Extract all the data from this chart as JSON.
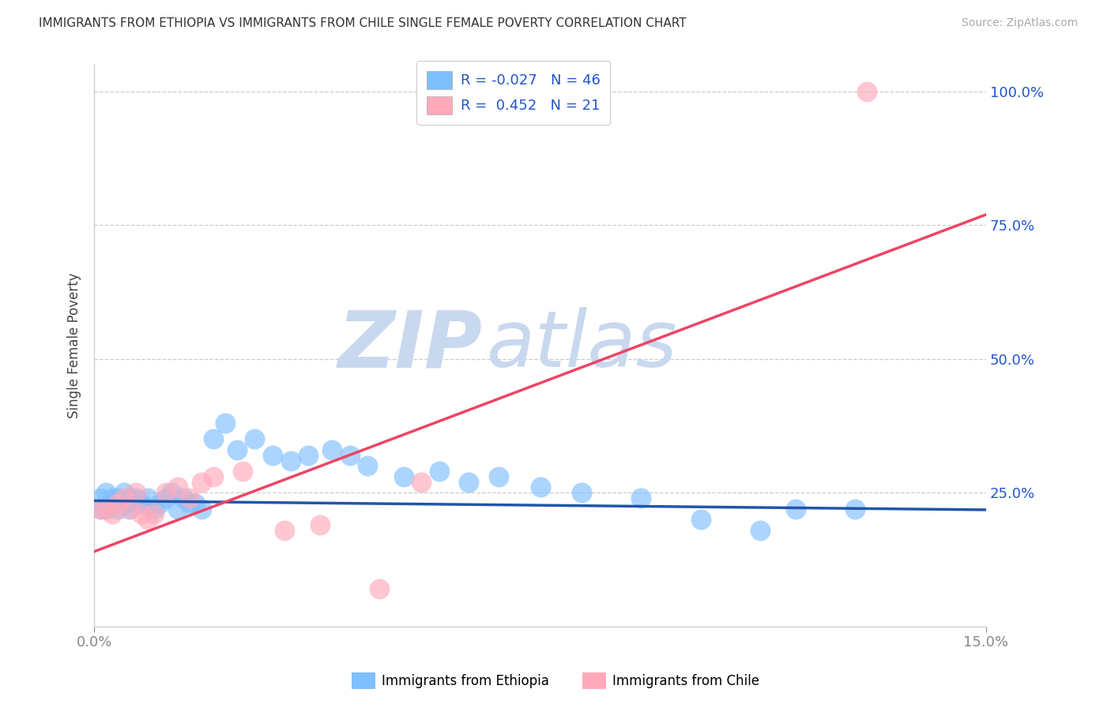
{
  "title": "IMMIGRANTS FROM ETHIOPIA VS IMMIGRANTS FROM CHILE SINGLE FEMALE POVERTY CORRELATION CHART",
  "source": "Source: ZipAtlas.com",
  "ylabel": "Single Female Poverty",
  "color_ethiopia": "#7fbfff",
  "color_chile": "#ffaabb",
  "color_trendline_ethiopia": "#2255aa",
  "color_trendline_chile": "#ee4466",
  "watermark_zip": "ZIP",
  "watermark_atlas": "atlas",
  "watermark_color": "#c8d8ee",
  "xlim": [
    0.0,
    0.15
  ],
  "ylim": [
    0.0,
    1.05
  ],
  "ethiopia_trendline": [
    0.235,
    0.218
  ],
  "chile_trendline": [
    0.14,
    0.77
  ],
  "ethiopia_x": [
    0.001,
    0.001,
    0.002,
    0.002,
    0.003,
    0.003,
    0.004,
    0.004,
    0.005,
    0.005,
    0.006,
    0.006,
    0.007,
    0.007,
    0.008,
    0.009,
    0.01,
    0.011,
    0.012,
    0.013,
    0.014,
    0.015,
    0.016,
    0.017,
    0.018,
    0.02,
    0.022,
    0.024,
    0.027,
    0.03,
    0.033,
    0.036,
    0.04,
    0.043,
    0.046,
    0.052,
    0.058,
    0.063,
    0.068,
    0.075,
    0.082,
    0.092,
    0.102,
    0.112,
    0.118,
    0.128
  ],
  "ethiopia_y": [
    0.24,
    0.22,
    0.25,
    0.22,
    0.23,
    0.24,
    0.24,
    0.22,
    0.25,
    0.23,
    0.24,
    0.22,
    0.23,
    0.24,
    0.23,
    0.24,
    0.22,
    0.23,
    0.24,
    0.25,
    0.22,
    0.24,
    0.23,
    0.23,
    0.22,
    0.35,
    0.38,
    0.33,
    0.35,
    0.32,
    0.31,
    0.32,
    0.33,
    0.32,
    0.3,
    0.28,
    0.29,
    0.27,
    0.28,
    0.26,
    0.25,
    0.24,
    0.2,
    0.18,
    0.22,
    0.22
  ],
  "chile_x": [
    0.001,
    0.002,
    0.003,
    0.004,
    0.005,
    0.006,
    0.007,
    0.008,
    0.009,
    0.01,
    0.012,
    0.014,
    0.016,
    0.018,
    0.02,
    0.025,
    0.032,
    0.038,
    0.048,
    0.055,
    0.13
  ],
  "chile_y": [
    0.22,
    0.22,
    0.21,
    0.23,
    0.24,
    0.22,
    0.25,
    0.21,
    0.2,
    0.21,
    0.25,
    0.26,
    0.24,
    0.27,
    0.28,
    0.29,
    0.18,
    0.19,
    0.07,
    0.27,
    1.0
  ]
}
